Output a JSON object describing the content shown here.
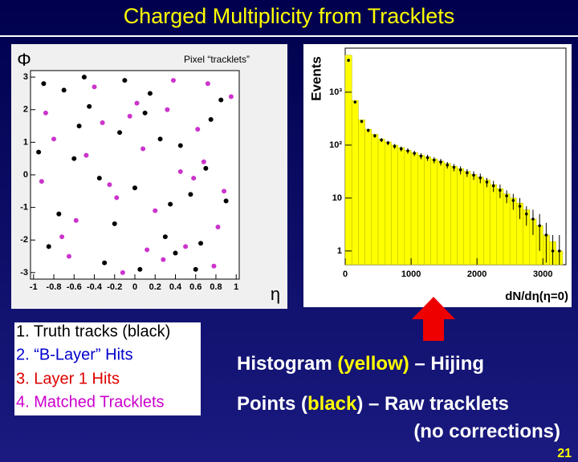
{
  "title": "Charged Multiplicity from Tracklets",
  "page_number": "21",
  "list": [
    "1. Truth tracks (black)",
    "2. “B-Layer” Hits",
    "3. Layer 1 Hits",
    "4. Matched Tracklets"
  ],
  "notes": [
    {
      "parts": [
        "Histogram ",
        "(yellow)",
        " – Hijing"
      ]
    },
    {
      "parts": [
        "Points (",
        "black",
        ") – Raw tracklets"
      ]
    },
    {
      "parts": [
        "(no corrections)"
      ]
    }
  ],
  "chart_data": [
    {
      "type": "scatter",
      "title": "Pixel “tracklets”",
      "ylabel": "Φ",
      "xlabel": "η",
      "xlim": [
        -1.03,
        1.03
      ],
      "ylim": [
        -3.2,
        3.2
      ],
      "xticks": [
        -1,
        -0.8,
        -0.6,
        -0.4,
        -0.2,
        0,
        0.2,
        0.4,
        0.6,
        0.8,
        1
      ],
      "yticks": [
        -3,
        -2,
        -1,
        0,
        1,
        2,
        3
      ],
      "series": [
        {
          "color": "#000000",
          "x": [
            -0.9,
            -0.75,
            -0.6,
            -0.45,
            -0.3,
            -0.15,
            0,
            0.15,
            0.3,
            0.45,
            0.6,
            0.75,
            0.9,
            -0.85,
            -0.5,
            -0.2,
            0.1,
            0.4,
            0.7,
            -0.7,
            -0.35,
            0.05,
            0.25,
            0.55,
            0.85,
            -0.95,
            -0.1,
            0.35,
            0.65,
            -0.55
          ],
          "values": [
            2.8,
            -1.2,
            0.5,
            2.1,
            -2.7,
            1.3,
            -0.4,
            2.5,
            -1.9,
            0.9,
            -2.9,
            1.7,
            -0.8,
            -2.2,
            3.0,
            -1.5,
            1.9,
            -2.4,
            0.2,
            2.6,
            -0.1,
            -2.9,
            1.1,
            -0.6,
            2.3,
            0.7,
            2.9,
            -0.9,
            -2.1,
            1.5
          ]
        },
        {
          "color": "#cc33cc",
          "x": [
            -0.8,
            -0.65,
            -0.4,
            -0.25,
            -0.05,
            0.2,
            0.38,
            0.5,
            0.68,
            0.82,
            0.95,
            -0.92,
            -0.58,
            -0.12,
            0.08,
            0.28,
            0.62,
            0.88,
            -0.72,
            -0.32,
            0.02,
            0.45,
            0.78,
            -0.48,
            -0.18,
            0.32,
            0.58,
            -0.88,
            0.12,
            0.72
          ],
          "values": [
            1.1,
            -2.5,
            2.7,
            -0.3,
            1.8,
            -1.1,
            2.9,
            -2.2,
            0.4,
            -1.6,
            2.4,
            -0.2,
            -1.4,
            -3.0,
            0.8,
            -2.6,
            1.4,
            -0.5,
            -1.9,
            1.6,
            2.2,
            0.1,
            -2.8,
            0.6,
            -0.7,
            2.0,
            -0.1,
            1.9,
            -2.3,
            2.8
          ]
        }
      ]
    },
    {
      "type": "histogram",
      "ylabel": "Events",
      "xlabel": "dN/dη(η=0)",
      "log_y": true,
      "xlim": [
        0,
        3350
      ],
      "ylim": [
        0.55,
        6800
      ],
      "xticks": [
        0,
        1000,
        2000,
        3000
      ],
      "yticks": [
        1,
        10,
        {
          "value": 100,
          "label": "10²"
        },
        {
          "value": 1000,
          "label": "10³"
        }
      ],
      "bins": [
        0,
        100,
        200,
        300,
        400,
        500,
        600,
        700,
        800,
        900,
        1000,
        1100,
        1200,
        1300,
        1400,
        1500,
        1600,
        1700,
        1800,
        1900,
        2000,
        2100,
        2200,
        2300,
        2400,
        2500,
        2600,
        2700,
        2800,
        2900,
        3000,
        3100,
        3200,
        3300
      ],
      "series": [
        {
          "color": "#ffff00",
          "values": [
            5000,
            700,
            300,
            200,
            160,
            130,
            115,
            100,
            90,
            80,
            72,
            65,
            60,
            55,
            50,
            45,
            40,
            36,
            32,
            28,
            25,
            22,
            18,
            15,
            12,
            10,
            8,
            6,
            4,
            3,
            2,
            1.5,
            1
          ]
        },
        {
          "color": "#000000",
          "values": [
            4000,
            650,
            280,
            190,
            150,
            125,
            110,
            95,
            85,
            78,
            70,
            62,
            58,
            52,
            48,
            42,
            38,
            34,
            30,
            27,
            24,
            20,
            17,
            14,
            11,
            9,
            7,
            5,
            4,
            3,
            2,
            1,
            1
          ],
          "errors": [
            60,
            25,
            17,
            14,
            12,
            11,
            10,
            10,
            9,
            9,
            8,
            8,
            8,
            7,
            7,
            6,
            6,
            6,
            5,
            5,
            5,
            4,
            4,
            4,
            3,
            3,
            3,
            2,
            2,
            2,
            1.4,
            1,
            1
          ]
        }
      ]
    }
  ]
}
